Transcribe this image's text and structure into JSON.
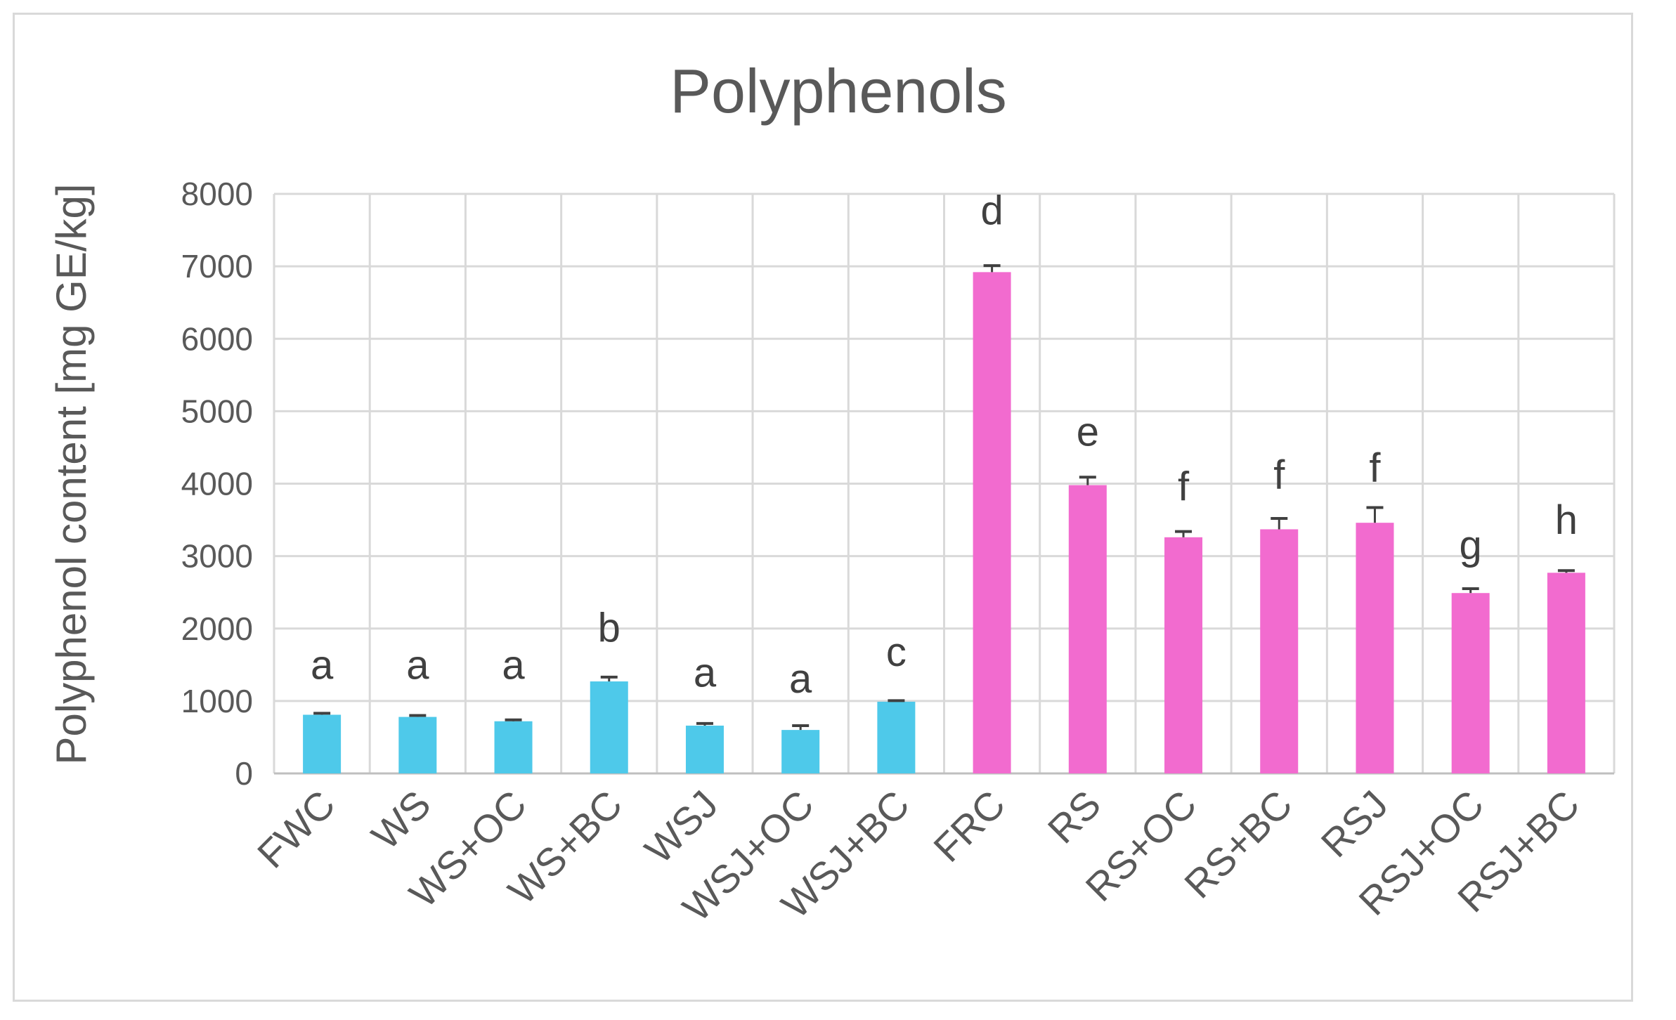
{
  "chart_data": {
    "type": "bar",
    "title": "Polyphenols",
    "xlabel": "",
    "ylabel": "Polyphenol content [mg GE/kg]",
    "ylim": [
      0,
      8000
    ],
    "yticks": [
      "0",
      "1000",
      "2000",
      "3000",
      "4000",
      "5000",
      "6000",
      "7000",
      "8000"
    ],
    "grid": true,
    "legend": "none",
    "categories": [
      "FWC",
      "WS",
      "WS+OC",
      "WS+BC",
      "WSJ",
      "WSJ+OC",
      "WSJ+BC",
      "FRC",
      "RS",
      "RS+OC",
      "RS+BC",
      "RSJ",
      "RSJ+OC",
      "RSJ+BC"
    ],
    "values": [
      810,
      780,
      720,
      1270,
      660,
      600,
      990,
      6920,
      3980,
      3260,
      3370,
      3460,
      2490,
      2770
    ],
    "errors": [
      20,
      20,
      20,
      60,
      30,
      60,
      15,
      90,
      110,
      80,
      150,
      210,
      60,
      30
    ],
    "significance_letters": [
      "a",
      "a",
      "a",
      "b",
      "a",
      "a",
      "c",
      "d",
      "e",
      "f",
      "f",
      "f",
      "g",
      "h"
    ],
    "letter_heights": [
      1500,
      1500,
      1500,
      2010,
      1390,
      1310,
      1680,
      7770,
      4720,
      3960,
      4120,
      4220,
      3150,
      3500
    ],
    "bar_colors": [
      "#4ec9ea",
      "#4ec9ea",
      "#4ec9ea",
      "#4ec9ea",
      "#4ec9ea",
      "#4ec9ea",
      "#4ec9ea",
      "#f26bcf",
      "#f26bcf",
      "#f26bcf",
      "#f26bcf",
      "#f26bcf",
      "#f26bcf",
      "#f26bcf"
    ]
  }
}
